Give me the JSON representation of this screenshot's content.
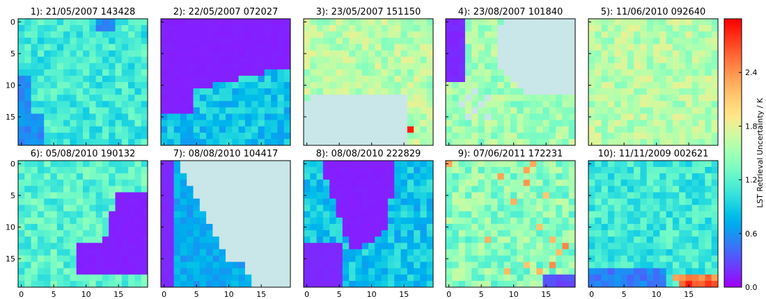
{
  "chart_data": {
    "type": "heatmap",
    "panels": [
      {
        "title": "1): 21/05/2007 143428",
        "pattern": "mixed",
        "base": 1.1
      },
      {
        "title": "2): 22/05/2007 072027",
        "pattern": "low_top",
        "base": 0.8
      },
      {
        "title": "3): 23/05/2007 151150",
        "pattern": "nodata_bottom",
        "base": 1.6
      },
      {
        "title": "4): 23/08/2007 101840",
        "pattern": "nodata_right",
        "base": 1.5
      },
      {
        "title": "5): 11/06/2010 092640",
        "pattern": "high",
        "base": 1.6
      },
      {
        "title": "6): 05/08/2010 190132",
        "pattern": "low_right",
        "base": 1.2
      },
      {
        "title": "7): 08/08/2010 104417",
        "pattern": "nodata_wedge",
        "base": 0.7
      },
      {
        "title": "8): 08/08/2010 222829",
        "pattern": "low_diag",
        "base": 0.8
      },
      {
        "title": "9): 07/06/2011 172231",
        "pattern": "speckle",
        "base": 1.4
      },
      {
        "title": "10): 11/11/2009 002621",
        "pattern": "bottom_hot",
        "base": 1.1
      }
    ],
    "grid": [
      20,
      20
    ],
    "xticks": [
      0,
      5,
      10,
      15
    ],
    "yticks": [
      0,
      5,
      10,
      15
    ],
    "colorbar": {
      "label": "LST Retrieval Uncertainty / K",
      "vmin": 0.0,
      "vmax": 3.0,
      "ticks": [
        "0.0",
        "0.6",
        "1.2",
        "1.8",
        "2.4"
      ]
    },
    "nodata_color": "#c9e6e8"
  }
}
